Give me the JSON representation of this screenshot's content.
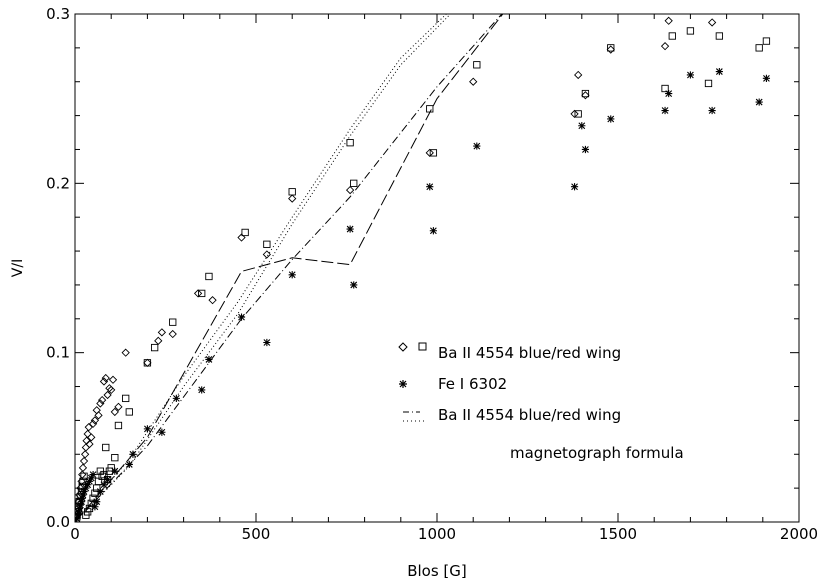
{
  "chart_data": {
    "type": "scatter",
    "xlabel": "Blos [G]",
    "ylabel": "V/I",
    "xlim": [
      0,
      2000
    ],
    "ylim": [
      0,
      0.3
    ],
    "x_ticks": [
      0,
      500,
      1000,
      1500,
      2000
    ],
    "x_tick_labels": [
      "0",
      "500",
      "1000",
      "1500",
      "2000"
    ],
    "y_ticks": [
      0.0,
      0.1,
      0.2,
      0.3
    ],
    "y_tick_labels": [
      "0.0",
      "0.1",
      "0.2",
      "0.3"
    ],
    "grid": false,
    "legend_position": "center-right",
    "legend": {
      "markers_label": "Ba II 4554 blue/red wing",
      "stars_label": "Fe I 6302",
      "lines_label": "Ba II 4554 blue/red wing",
      "lines_note": "magnetograph formula"
    },
    "series": [
      {
        "marker": "diamond",
        "x": [
          5,
          8,
          10,
          12,
          15,
          18,
          20,
          22,
          25,
          28,
          30,
          32,
          35,
          38,
          40,
          45,
          50,
          55,
          60,
          65,
          70,
          75,
          80,
          85,
          90,
          95,
          100,
          105,
          110,
          120,
          140,
          200,
          230,
          240,
          270,
          340,
          380,
          460,
          530,
          600,
          760,
          980,
          1100,
          1380,
          1390,
          1410,
          1480,
          1630,
          1640,
          1760
        ],
        "y": [
          0.004,
          0.008,
          0.012,
          0.016,
          0.02,
          0.024,
          0.028,
          0.032,
          0.036,
          0.04,
          0.044,
          0.048,
          0.052,
          0.056,
          0.046,
          0.05,
          0.058,
          0.06,
          0.066,
          0.063,
          0.07,
          0.072,
          0.083,
          0.085,
          0.075,
          0.079,
          0.078,
          0.084,
          0.065,
          0.068,
          0.1,
          0.094,
          0.107,
          0.112,
          0.111,
          0.135,
          0.131,
          0.168,
          0.158,
          0.191,
          0.196,
          0.218,
          0.26,
          0.241,
          0.264,
          0.252,
          0.279,
          0.281,
          0.296,
          0.295
        ]
      },
      {
        "marker": "square",
        "x": [
          5,
          8,
          10,
          12,
          15,
          18,
          20,
          22,
          25,
          30,
          35,
          40,
          45,
          50,
          55,
          60,
          65,
          70,
          75,
          80,
          85,
          90,
          95,
          100,
          110,
          120,
          140,
          150,
          200,
          220,
          270,
          350,
          370,
          470,
          530,
          600,
          760,
          770,
          980,
          990,
          1110,
          1390,
          1410,
          1480,
          1630,
          1650,
          1700,
          1750,
          1780,
          1890,
          1910
        ],
        "y": [
          0.003,
          0.006,
          0.009,
          0.012,
          0.015,
          0.018,
          0.021,
          0.024,
          0.027,
          0.004,
          0.006,
          0.008,
          0.011,
          0.014,
          0.017,
          0.02,
          0.024,
          0.03,
          0.027,
          0.028,
          0.044,
          0.025,
          0.03,
          0.032,
          0.038,
          0.057,
          0.073,
          0.065,
          0.094,
          0.103,
          0.118,
          0.135,
          0.145,
          0.171,
          0.164,
          0.195,
          0.224,
          0.2,
          0.244,
          0.218,
          0.27,
          0.241,
          0.253,
          0.28,
          0.256,
          0.287,
          0.29,
          0.259,
          0.287,
          0.28,
          0.284
        ]
      },
      {
        "marker": "star",
        "x": [
          5,
          8,
          10,
          12,
          15,
          18,
          20,
          22,
          25,
          30,
          35,
          40,
          45,
          50,
          55,
          60,
          70,
          80,
          90,
          110,
          150,
          160,
          200,
          240,
          280,
          350,
          370,
          460,
          530,
          600,
          760,
          770,
          980,
          990,
          1110,
          1380,
          1400,
          1410,
          1480,
          1630,
          1640,
          1700,
          1760,
          1780,
          1890,
          1910
        ],
        "y": [
          0.002,
          0.004,
          0.006,
          0.008,
          0.01,
          0.012,
          0.014,
          0.016,
          0.018,
          0.02,
          0.022,
          0.024,
          0.026,
          0.028,
          0.009,
          0.012,
          0.018,
          0.022,
          0.025,
          0.03,
          0.034,
          0.04,
          0.055,
          0.053,
          0.073,
          0.078,
          0.096,
          0.121,
          0.106,
          0.146,
          0.173,
          0.14,
          0.198,
          0.172,
          0.222,
          0.198,
          0.234,
          0.22,
          0.238,
          0.243,
          0.253,
          0.264,
          0.243,
          0.266,
          0.248,
          0.262
        ]
      },
      {
        "line": "long-dash",
        "x": [
          0,
          200,
          460,
          600,
          760,
          1000,
          1200
        ],
        "y": [
          0,
          0.05,
          0.148,
          0.156,
          0.152,
          0.25,
          0.305
        ]
      },
      {
        "line": "dash-dot",
        "x": [
          0,
          200,
          460,
          600,
          760,
          1000,
          1200
        ],
        "y": [
          0,
          0.045,
          0.12,
          0.155,
          0.192,
          0.257,
          0.305
        ]
      },
      {
        "line": "dotted",
        "x": [
          0,
          150,
          300,
          450,
          600,
          760,
          900,
          1060
        ],
        "y": [
          0,
          0.033,
          0.08,
          0.123,
          0.176,
          0.228,
          0.27,
          0.305
        ]
      },
      {
        "line": "dotted",
        "x": [
          0,
          150,
          300,
          450,
          600,
          760,
          900,
          1050
        ],
        "y": [
          0,
          0.037,
          0.086,
          0.13,
          0.18,
          0.232,
          0.274,
          0.305
        ]
      }
    ]
  }
}
